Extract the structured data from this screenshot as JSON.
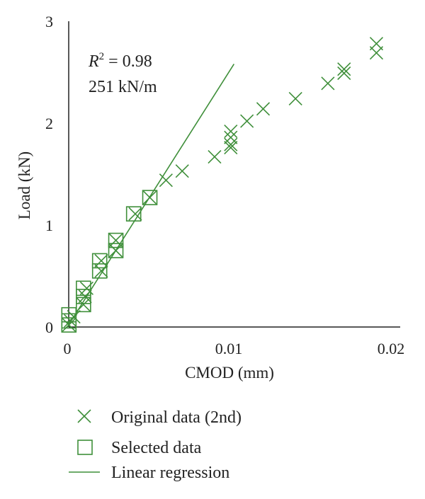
{
  "chart_data": {
    "type": "scatter",
    "xlabel": "CMOD (mm)",
    "ylabel": "Load (kN)",
    "xlim": [
      0,
      0.02
    ],
    "ylim": [
      0,
      3
    ],
    "x_ticks": [
      "0",
      "0.01",
      "0.02"
    ],
    "y_ticks": [
      "0",
      "1",
      "2",
      "3"
    ],
    "grid": false,
    "legend_position": "bottom",
    "annotations": {
      "r2_label": "R",
      "r2_exp": "2",
      "r2_value": " = 0.98",
      "stiffness": "251 kN/m"
    },
    "colors": {
      "series": "#3f8f3a",
      "axis": "#222222"
    },
    "series": [
      {
        "name": "Original data (2nd)",
        "marker": "x",
        "points": [
          [
            0.0001,
            0.02
          ],
          [
            0.0002,
            0.06
          ],
          [
            0.0004,
            0.1
          ],
          [
            0.001,
            0.22
          ],
          [
            0.0011,
            0.3
          ],
          [
            0.0012,
            0.38
          ],
          [
            0.0021,
            0.55
          ],
          [
            0.0021,
            0.65
          ],
          [
            0.003,
            0.75
          ],
          [
            0.003,
            0.85
          ],
          [
            0.0042,
            1.11
          ],
          [
            0.0051,
            1.27
          ],
          [
            0.0061,
            1.44
          ],
          [
            0.0071,
            1.53
          ],
          [
            0.0091,
            1.67
          ],
          [
            0.0101,
            1.76
          ],
          [
            0.0101,
            1.79
          ],
          [
            0.0101,
            1.86
          ],
          [
            0.0101,
            1.92
          ],
          [
            0.0111,
            2.02
          ],
          [
            0.0121,
            2.14
          ],
          [
            0.0141,
            2.24
          ],
          [
            0.0161,
            2.39
          ],
          [
            0.0171,
            2.49
          ],
          [
            0.0171,
            2.53
          ],
          [
            0.0191,
            2.69
          ],
          [
            0.0191,
            2.78
          ]
        ]
      },
      {
        "name": "Selected data",
        "marker": "square",
        "points": [
          [
            0.0001,
            0.02
          ],
          [
            0.0001,
            0.06
          ],
          [
            0.0001,
            0.12
          ],
          [
            0.001,
            0.22
          ],
          [
            0.001,
            0.3
          ],
          [
            0.001,
            0.38
          ],
          [
            0.002,
            0.55
          ],
          [
            0.002,
            0.65
          ],
          [
            0.003,
            0.75
          ],
          [
            0.003,
            0.85
          ],
          [
            0.0041,
            1.11
          ],
          [
            0.0051,
            1.27
          ]
        ]
      },
      {
        "name": "Linear regression",
        "marker": "line",
        "line": [
          [
            0,
            0.0
          ],
          [
            0.0103,
            2.58
          ]
        ]
      }
    ]
  }
}
